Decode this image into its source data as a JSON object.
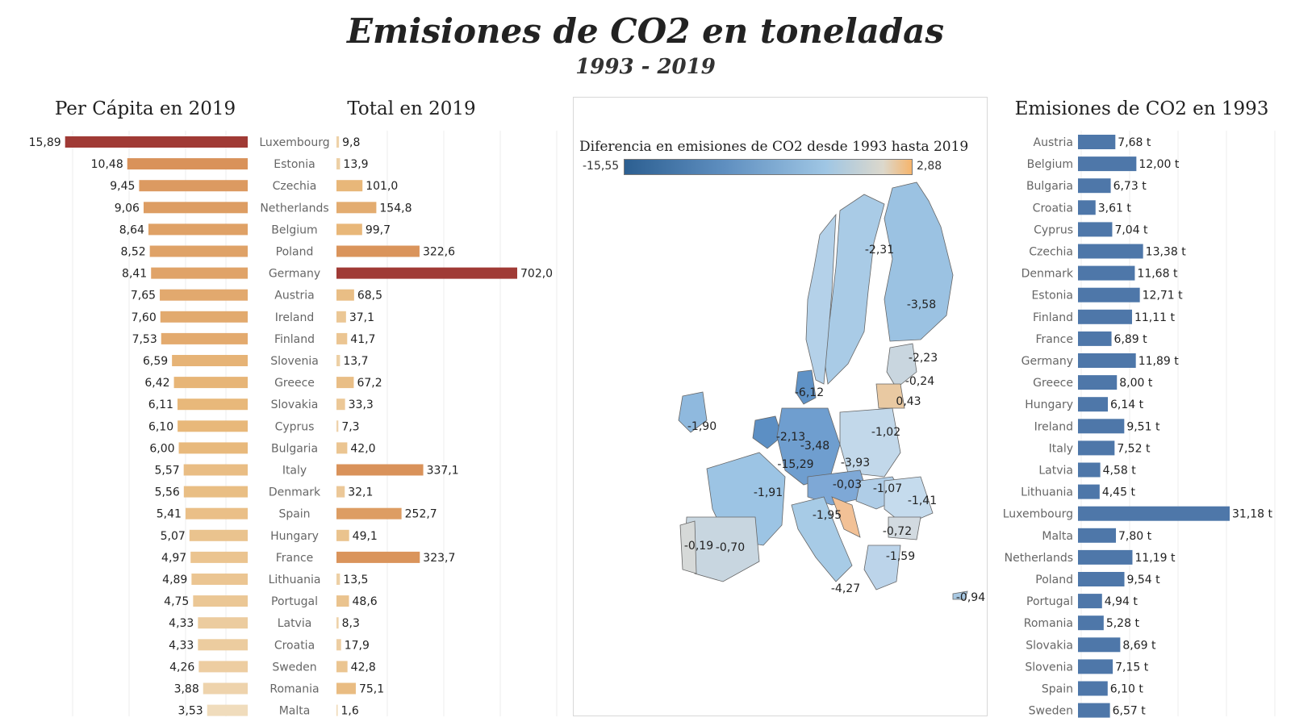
{
  "title": "Emisiones de CO2 en toneladas",
  "subtitle": "1993 - 2019",
  "chart_data": [
    {
      "type": "bar",
      "orientation": "horizontal",
      "title": "Per Cápita en 2019",
      "categories": [
        "Luxembourg",
        "Estonia",
        "Czechia",
        "Netherlands",
        "Belgium",
        "Poland",
        "Germany",
        "Austria",
        "Ireland",
        "Finland",
        "Slovenia",
        "Greece",
        "Slovakia",
        "Cyprus",
        "Bulgaria",
        "Italy",
        "Denmark",
        "Spain",
        "Hungary",
        "France",
        "Lithuania",
        "Portugal",
        "Latvia",
        "Croatia",
        "Sweden",
        "Romania",
        "Malta"
      ],
      "values": [
        15.89,
        10.48,
        9.45,
        9.06,
        8.64,
        8.52,
        8.41,
        7.65,
        7.6,
        7.53,
        6.59,
        6.42,
        6.11,
        6.1,
        6.0,
        5.57,
        5.56,
        5.41,
        5.07,
        4.97,
        4.89,
        4.75,
        4.33,
        4.33,
        4.26,
        3.88,
        3.53
      ],
      "labels": [
        "15,89",
        "10,48",
        "9,45",
        "9,06",
        "8,64",
        "8,52",
        "8,41",
        "7,65",
        "7,60",
        "7,53",
        "6,59",
        "6,42",
        "6,11",
        "6,10",
        "6,00",
        "5,57",
        "5,56",
        "5,41",
        "5,07",
        "4,97",
        "4,89",
        "4,75",
        "4,33",
        "4,33",
        "4,26",
        "3,88",
        "3,53"
      ],
      "color_scale": [
        "#f0dcbc",
        "#e8b87a",
        "#d9925a",
        "#a03a35"
      ]
    },
    {
      "type": "bar",
      "orientation": "horizontal",
      "title": "Total en 2019",
      "categories": [
        "Luxembourg",
        "Estonia",
        "Czechia",
        "Netherlands",
        "Belgium",
        "Poland",
        "Germany",
        "Austria",
        "Ireland",
        "Finland",
        "Slovenia",
        "Greece",
        "Slovakia",
        "Cyprus",
        "Bulgaria",
        "Italy",
        "Denmark",
        "Spain",
        "Hungary",
        "France",
        "Lithuania",
        "Portugal",
        "Latvia",
        "Croatia",
        "Sweden",
        "Romania",
        "Malta"
      ],
      "values": [
        9.8,
        13.9,
        101.0,
        154.8,
        99.7,
        322.6,
        702.0,
        68.5,
        37.1,
        41.7,
        13.7,
        67.2,
        33.3,
        7.3,
        42.0,
        337.1,
        32.1,
        252.7,
        49.1,
        323.7,
        13.5,
        48.6,
        8.3,
        17.9,
        42.8,
        75.1,
        1.6
      ],
      "labels": [
        "9,8",
        "13,9",
        "101,0",
        "154,8",
        "99,7",
        "322,6",
        "702,0",
        "68,5",
        "37,1",
        "41,7",
        "13,7",
        "67,2",
        "33,3",
        "7,3",
        "42,0",
        "337,1",
        "32,1",
        "252,7",
        "49,1",
        "323,7",
        "13,5",
        "48,6",
        "8,3",
        "17,9",
        "42,8",
        "75,1",
        "1,6"
      ],
      "color_scale": [
        "#f0dcbc",
        "#e8b87a",
        "#d9925a",
        "#a03a35"
      ]
    },
    {
      "type": "map",
      "title": "Diferencia en emisiones de CO2 desde 1993 hasta 2019",
      "range": [
        -15.55,
        2.88
      ],
      "range_labels": [
        "-15,55",
        "2,88"
      ],
      "color_scale": [
        "#2c5f91",
        "#9fc6e4",
        "#dcd8cc",
        "#f6b56c"
      ],
      "regions": [
        {
          "label": "-2,31",
          "value": -2.31
        },
        {
          "label": "-3,58",
          "value": -3.58
        },
        {
          "label": "-2,23",
          "value": -2.23
        },
        {
          "label": "-0,24",
          "value": -0.24
        },
        {
          "label": "0,43",
          "value": 0.43
        },
        {
          "label": "-6,12",
          "value": -6.12
        },
        {
          "label": "-1,90",
          "value": -1.9
        },
        {
          "label": "-2,13",
          "value": -2.13
        },
        {
          "label": "-3,48",
          "value": -3.48
        },
        {
          "label": "-1,02",
          "value": -1.02
        },
        {
          "label": "-15,29",
          "value": -15.29
        },
        {
          "label": "-3,93",
          "value": -3.93
        },
        {
          "label": "-1,91",
          "value": -1.91
        },
        {
          "label": "-0,03",
          "value": -0.03
        },
        {
          "label": "-1,07",
          "value": -1.07
        },
        {
          "label": "-1,41",
          "value": -1.41
        },
        {
          "label": "-1,95",
          "value": -1.95
        },
        {
          "label": "-0,72",
          "value": -0.72
        },
        {
          "label": "-0,19",
          "value": -0.19
        },
        {
          "label": "-0,70",
          "value": -0.7
        },
        {
          "label": "-1,59",
          "value": -1.59
        },
        {
          "label": "-4,27",
          "value": -4.27
        },
        {
          "label": "-0,94",
          "value": -0.94
        }
      ]
    },
    {
      "type": "bar",
      "orientation": "horizontal",
      "title": "Emisiones de CO2 en 1993",
      "categories": [
        "Austria",
        "Belgium",
        "Bulgaria",
        "Croatia",
        "Cyprus",
        "Czechia",
        "Denmark",
        "Estonia",
        "Finland",
        "France",
        "Germany",
        "Greece",
        "Hungary",
        "Ireland",
        "Italy",
        "Latvia",
        "Lithuania",
        "Luxembourg",
        "Malta",
        "Netherlands",
        "Poland",
        "Portugal",
        "Romania",
        "Slovakia",
        "Slovenia",
        "Spain",
        "Sweden"
      ],
      "values": [
        7.68,
        12.0,
        6.73,
        3.61,
        7.04,
        13.38,
        11.68,
        12.71,
        11.11,
        6.89,
        11.89,
        8.0,
        6.14,
        9.51,
        7.52,
        4.58,
        4.45,
        31.18,
        7.8,
        11.19,
        9.54,
        4.94,
        5.28,
        8.69,
        7.15,
        6.1,
        6.57
      ],
      "labels": [
        "7,68 t",
        "12,00 t",
        "6,73 t",
        "3,61 t",
        "7,04 t",
        "13,38 t",
        "11,68 t",
        "12,71 t",
        "11,11 t",
        "6,89 t",
        "11,89 t",
        "8,00 t",
        "6,14 t",
        "9,51 t",
        "7,52 t",
        "4,58 t",
        "4,45 t",
        "31,18 t",
        "7,80 t",
        "11,19 t",
        "9,54 t",
        "4,94 t",
        "5,28 t",
        "8,69 t",
        "7,15 t",
        "6,10 t",
        "6,57 t"
      ],
      "color": "#4e77a9"
    }
  ]
}
